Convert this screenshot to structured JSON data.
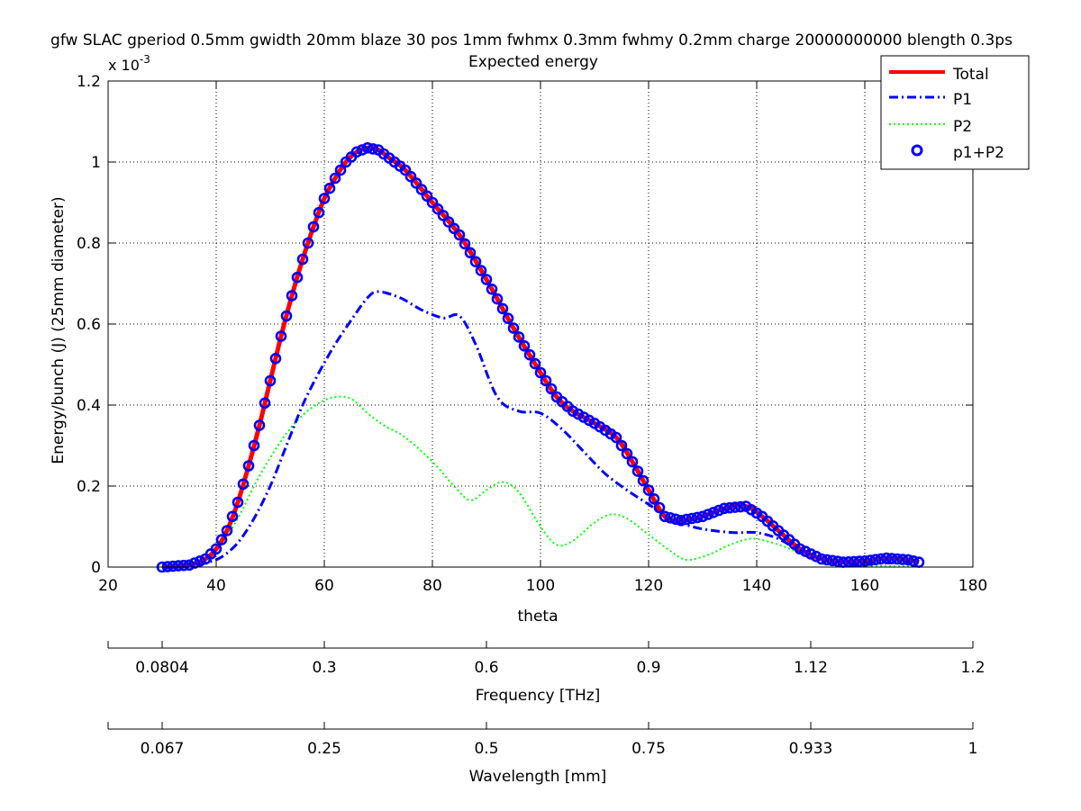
{
  "chart_data": {
    "type": "line",
    "title": "gfw SLAC gperiod 0.5mm gwidth 20mm blaze 30 pos 1mm fwhmx 0.3mm fwhmy 0.2mm charge 20000000000 blength 0.3ps",
    "subtitle": "Expected energy",
    "xlabel": "theta",
    "ylabel": "Energy/bunch (J) (25mm diameter)",
    "yexponent_base": "x 10",
    "yexponent_power": "-3",
    "xlim": [
      20,
      180
    ],
    "ylim": [
      0,
      1.2
    ],
    "xticks": [
      20,
      40,
      60,
      80,
      100,
      120,
      140,
      160,
      180
    ],
    "yticks": [
      0,
      0.2,
      0.4,
      0.6,
      0.8,
      1,
      1.2
    ],
    "ytick_labels": [
      "0",
      "0.2",
      "0.4",
      "0.6",
      "0.8",
      "1",
      "1.2"
    ],
    "grid": true,
    "legend_position": "top-right",
    "series": [
      {
        "name": "Total",
        "color": "#ff0000",
        "style": "solid-thick",
        "x": [
          30,
          35,
          38,
          40,
          42,
          44,
          46,
          48,
          50,
          52,
          54,
          56,
          58,
          60,
          62,
          64,
          66,
          68,
          70,
          72,
          75,
          80,
          85,
          90,
          95,
          100,
          103,
          106,
          110,
          114,
          117,
          120,
          123,
          126,
          130,
          134,
          138,
          141,
          144,
          148,
          152,
          156,
          160,
          164,
          168,
          170
        ],
        "y": [
          0.0,
          0.005,
          0.02,
          0.045,
          0.09,
          0.16,
          0.25,
          0.35,
          0.46,
          0.57,
          0.67,
          0.76,
          0.84,
          0.91,
          0.96,
          1.0,
          1.025,
          1.035,
          1.03,
          1.01,
          0.98,
          0.9,
          0.82,
          0.71,
          0.59,
          0.48,
          0.42,
          0.385,
          0.355,
          0.32,
          0.26,
          0.19,
          0.125,
          0.115,
          0.125,
          0.145,
          0.15,
          0.125,
          0.09,
          0.045,
          0.02,
          0.012,
          0.015,
          0.022,
          0.018,
          0.012
        ]
      },
      {
        "name": "P1",
        "color": "#0000ff",
        "style": "dash-dot",
        "x": [
          30,
          35,
          38,
          41,
          44,
          47,
          50,
          53,
          56,
          59,
          62,
          65,
          68,
          70,
          74,
          78,
          82,
          85,
          88,
          92,
          96,
          100,
          104,
          108,
          112,
          116,
          120,
          124,
          128,
          132,
          136,
          140,
          144,
          148,
          152,
          156,
          160,
          164,
          168,
          170
        ],
        "y": [
          0.0,
          0.002,
          0.01,
          0.025,
          0.06,
          0.12,
          0.2,
          0.3,
          0.4,
          0.48,
          0.55,
          0.61,
          0.665,
          0.68,
          0.665,
          0.635,
          0.615,
          0.62,
          0.55,
          0.42,
          0.385,
          0.38,
          0.34,
          0.285,
          0.23,
          0.19,
          0.155,
          0.12,
          0.1,
          0.09,
          0.085,
          0.085,
          0.07,
          0.04,
          0.02,
          0.01,
          0.008,
          0.01,
          0.012,
          0.012
        ]
      },
      {
        "name": "P2",
        "color": "#00ff00",
        "style": "dotted",
        "x": [
          30,
          35,
          38,
          41,
          44,
          47,
          50,
          53,
          56,
          59,
          62,
          65,
          68,
          71,
          75,
          80,
          84,
          87,
          90,
          93,
          96,
          100,
          103,
          106,
          110,
          113,
          116,
          120,
          124,
          127,
          131,
          135,
          139,
          143,
          147,
          151,
          155,
          160,
          165,
          170
        ],
        "y": [
          0.0,
          0.005,
          0.02,
          0.06,
          0.12,
          0.2,
          0.27,
          0.33,
          0.375,
          0.405,
          0.42,
          0.415,
          0.38,
          0.35,
          0.32,
          0.26,
          0.2,
          0.165,
          0.19,
          0.21,
          0.185,
          0.1,
          0.055,
          0.065,
          0.11,
          0.13,
          0.12,
          0.08,
          0.04,
          0.018,
          0.03,
          0.055,
          0.07,
          0.06,
          0.04,
          0.02,
          0.008,
          0.003,
          0.002,
          0.002
        ]
      },
      {
        "name": "p1+P2",
        "color": "#0000ff",
        "style": "circles",
        "sample_step": 1,
        "same_as_series": "Total"
      }
    ]
  },
  "secondary_axes": [
    {
      "label": "Frequency [THz]",
      "ticks": [
        {
          "theta": 30,
          "label": "0.0804"
        },
        {
          "theta": 60,
          "label": "0.3"
        },
        {
          "theta": 90,
          "label": "0.6"
        },
        {
          "theta": 120,
          "label": "0.9"
        },
        {
          "theta": 150,
          "label": "1.12"
        },
        {
          "theta": 180,
          "label": "1.2"
        }
      ]
    },
    {
      "label": "Wavelength [mm]",
      "ticks": [
        {
          "theta": 30,
          "label": "0.067"
        },
        {
          "theta": 60,
          "label": "0.25"
        },
        {
          "theta": 90,
          "label": "0.5"
        },
        {
          "theta": 120,
          "label": "0.75"
        },
        {
          "theta": 150,
          "label": "0.933"
        },
        {
          "theta": 180,
          "label": "1"
        }
      ]
    }
  ]
}
